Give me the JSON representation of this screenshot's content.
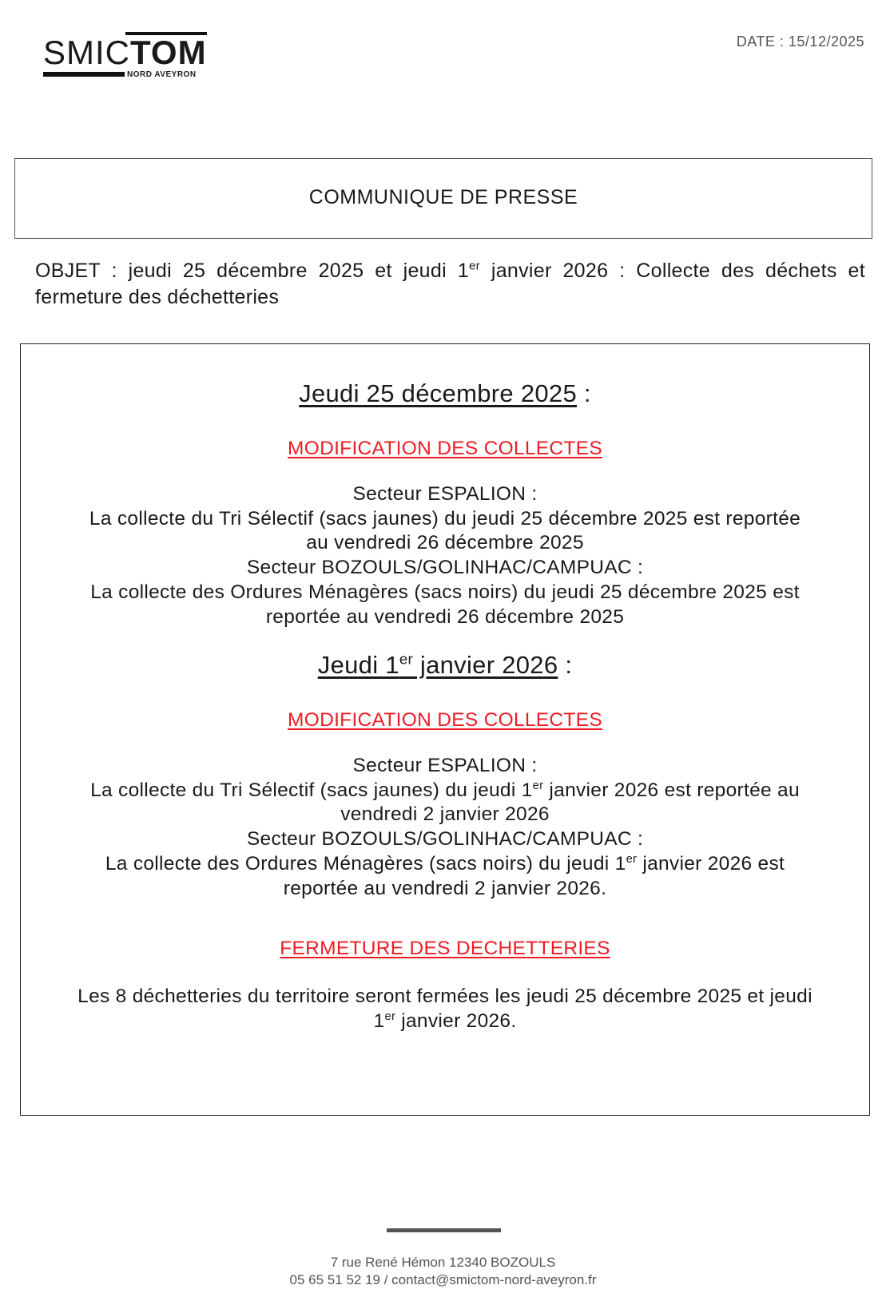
{
  "logo": {
    "smic": "SMIC",
    "tom": "TOM",
    "subtitle": "NORD AVEYRON"
  },
  "date": "DATE : 15/12/2025",
  "header_title": "COMMUNIQUE DE PRESSE",
  "objet": {
    "pre": "OBJET : jeudi 25 décembre 2025 et jeudi 1",
    "sup": "er",
    "post": " janvier 2026 : Collecte des déchets et fermeture des déchetteries"
  },
  "section1": {
    "heading": "Jeudi 25 décembre 2025",
    "heading_suffix": " :",
    "subheading": "MODIFICATION DES COLLECTES",
    "sector1": "Secteur ESPALION :",
    "sector1_lines": [
      "La collecte du Tri Sélectif (sacs jaunes) du jeudi 25 décembre 2025 est reportée",
      "au vendredi 26 décembre 2025"
    ],
    "sector2": "Secteur BOZOULS/GOLINHAC/CAMPUAC :",
    "sector2_lines": [
      "La collecte des Ordures Ménagères (sacs noirs)  du jeudi 25 décembre 2025 est",
      "reportée au vendredi 26 décembre 2025"
    ]
  },
  "section2": {
    "heading_pre": "Jeudi 1",
    "heading_sup": "er",
    "heading_post": " janvier 2026",
    "heading_suffix": " :",
    "subheading": "MODIFICATION DES COLLECTES",
    "sector1": "Secteur ESPALION :",
    "sector1_line1_pre": "La collecte du Tri Sélectif (sacs jaunes) du jeudi 1",
    "sup": "er",
    "sector1_line1_post": " janvier 2026 est reportée au",
    "sector1_line2": "vendredi 2 janvier 2026",
    "sector2": "Secteur BOZOULS/GOLINHAC/CAMPUAC :",
    "sector2_line1_pre": "La collecte des Ordures Ménagères (sacs noirs)  du jeudi 1",
    "sector2_line1_post": " janvier 2026 est",
    "sector2_line2": "reportée au vendredi 2 janvier 2026."
  },
  "section3": {
    "subheading": "FERMETURE DES DECHETTERIES",
    "line1": "Les 8 déchetteries du territoire seront fermées les jeudi 25 décembre 2025 et jeudi",
    "line2_pre": "1",
    "line2_sup": "er",
    "line2_post": " janvier 2026."
  },
  "footer": {
    "address": "7 rue René Hémon 12340 BOZOULS",
    "contact": "05 65 51 52 19  / contact@smictom-nord-aveyron.fr"
  },
  "colors": {
    "accent_red": "#ee1c25"
  }
}
